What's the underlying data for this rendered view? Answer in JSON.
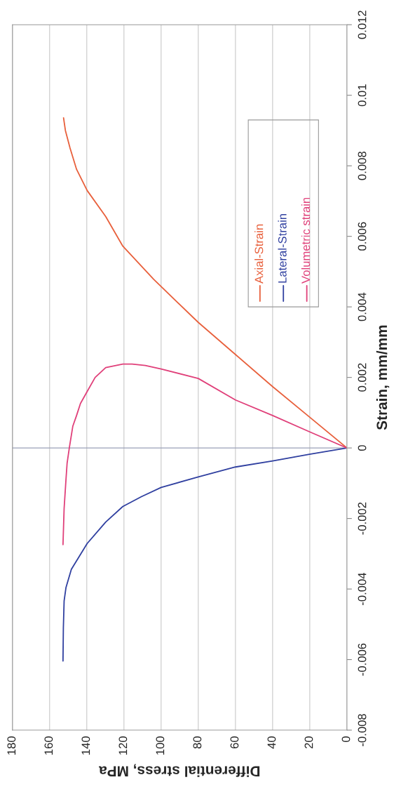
{
  "chart_data": {
    "type": "line",
    "xlabel": "Differential stress, MPa",
    "ylabel": "Strain, mm/mm",
    "xlim": [
      180,
      0
    ],
    "xticks": [
      0,
      20,
      40,
      60,
      80,
      100,
      120,
      140,
      160,
      180
    ],
    "ylim": [
      -0.008,
      0.012
    ],
    "yticks": [
      -0.008,
      -0.006,
      -0.004,
      -0.002,
      0,
      0.002,
      0.004,
      0.006,
      0.008,
      0.01,
      0.012
    ],
    "grid": "x",
    "legend": "top right",
    "marker": "none",
    "line_style": "solid",
    "ref_lines": [
      {
        "axis": "y",
        "value": 0,
        "color": "#9aa0b8"
      }
    ],
    "series": [
      {
        "name": "Axial-Strain",
        "color": "#e8603c",
        "x": [
          0,
          20,
          40,
          60,
          80,
          104,
          120.6,
          129.8,
          139.8,
          145.5,
          149,
          151.5,
          152.5
        ],
        "values": [
          0,
          0.00087,
          0.00174,
          0.00265,
          0.00356,
          0.00478,
          0.00572,
          0.00656,
          0.0073,
          0.0079,
          0.0085,
          0.009,
          0.00936
        ]
      },
      {
        "name": "Lateral-Strain",
        "color": "#3040a0",
        "x": [
          0,
          20.2,
          40,
          60,
          80,
          100,
          110.6,
          120.6,
          129.8,
          139.8,
          148.3,
          151.2,
          152.2,
          152.6,
          152.8
        ],
        "values": [
          0,
          -0.00018,
          -0.00037,
          -0.00054,
          -0.00082,
          -0.00112,
          -0.00138,
          -0.00166,
          -0.0021,
          -0.00271,
          -0.00344,
          -0.00396,
          -0.00434,
          -0.0051,
          -0.00604
        ]
      },
      {
        "name": "Volumetric strain",
        "color": "#e0407a",
        "x": [
          0,
          20.2,
          40,
          60,
          80,
          100,
          108.5,
          115.6,
          120.6,
          129.8,
          135.5,
          139.8,
          143.4,
          145.5,
          147.5,
          149.4,
          150.6,
          151.2,
          152.2,
          152.8
        ],
        "values": [
          0,
          0.00046,
          0.00092,
          0.00136,
          0.00197,
          0.00224,
          0.00234,
          0.00238,
          0.00238,
          0.00228,
          0.002,
          0.0016,
          0.00126,
          0.00092,
          0.00062,
          0,
          -0.00044,
          -0.0009,
          -0.00172,
          -0.00274
        ]
      }
    ]
  }
}
